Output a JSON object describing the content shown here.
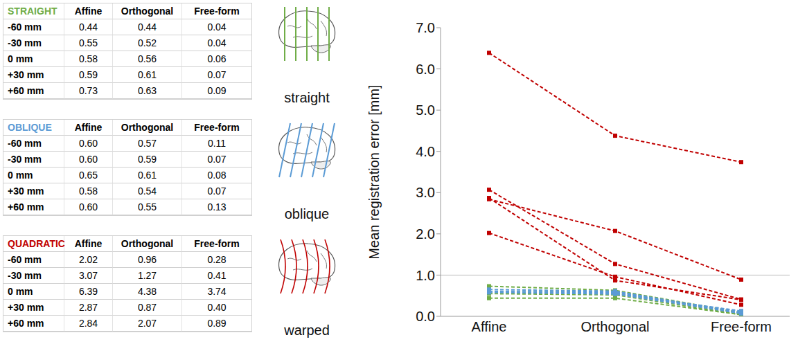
{
  "tables": [
    {
      "title": "STRAIGHT",
      "color": "#70ad47",
      "columns": [
        "Affine",
        "Orthogonal",
        "Free-form"
      ],
      "rows": [
        [
          "-60 mm",
          "0.44",
          "0.44",
          "0.04"
        ],
        [
          "-30 mm",
          "0.55",
          "0.52",
          "0.04"
        ],
        [
          "0 mm",
          "0.58",
          "0.56",
          "0.06"
        ],
        [
          "+30 mm",
          "0.59",
          "0.61",
          "0.07"
        ],
        [
          "+60 mm",
          "0.73",
          "0.63",
          "0.09"
        ]
      ]
    },
    {
      "title": "OBLIQUE",
      "color": "#5b9bd5",
      "columns": [
        "Affine",
        "Orthogonal",
        "Free-form"
      ],
      "rows": [
        [
          "-60 mm",
          "0.60",
          "0.57",
          "0.11"
        ],
        [
          "-30 mm",
          "0.60",
          "0.59",
          "0.07"
        ],
        [
          "0 mm",
          "0.65",
          "0.61",
          "0.08"
        ],
        [
          "+30 mm",
          "0.58",
          "0.54",
          "0.07"
        ],
        [
          "+60 mm",
          "0.60",
          "0.55",
          "0.13"
        ]
      ]
    },
    {
      "title": "QUADRATIC",
      "color": "#c00000",
      "columns": [
        "Affine",
        "Orthogonal",
        "Free-form"
      ],
      "rows": [
        [
          "-60 mm",
          "2.02",
          "0.96",
          "0.28"
        ],
        [
          "-30 mm",
          "3.07",
          "1.27",
          "0.41"
        ],
        [
          "0 mm",
          "6.39",
          "4.38",
          "3.74"
        ],
        [
          "+30 mm",
          "2.87",
          "0.87",
          "0.40"
        ],
        [
          "+60 mm",
          "2.84",
          "2.07",
          "0.89"
        ]
      ]
    }
  ],
  "illustrations": [
    {
      "label": "straight",
      "color": "#70ad47"
    },
    {
      "label": "oblique",
      "color": "#5b9bd5"
    },
    {
      "label": "warped",
      "color": "#c00000"
    }
  ],
  "chart_data": {
    "type": "line",
    "y_label": "Mean registration error [mm]",
    "categories": [
      "Affine",
      "Orthogonal",
      "Free-form"
    ],
    "ylim": [
      0,
      7
    ],
    "yticks": [
      {
        "value": 0,
        "label": "0.0"
      },
      {
        "value": 1,
        "label": "1.0"
      },
      {
        "value": 2,
        "label": "2.0"
      },
      {
        "value": 3,
        "label": "3.0"
      },
      {
        "value": 4,
        "label": "4.0"
      },
      {
        "value": 5,
        "label": "5.0"
      },
      {
        "value": 6,
        "label": "6.0"
      },
      {
        "value": 7,
        "label": "7.0"
      }
    ],
    "grid": false,
    "reference_lines": [
      1
    ],
    "line_style": "dashed",
    "marker": "square",
    "series": [
      {
        "color": "#70ad47",
        "values": [
          0.44,
          0.44,
          0.04
        ]
      },
      {
        "color": "#70ad47",
        "values": [
          0.55,
          0.52,
          0.04
        ]
      },
      {
        "color": "#70ad47",
        "values": [
          0.58,
          0.56,
          0.06
        ]
      },
      {
        "color": "#70ad47",
        "values": [
          0.59,
          0.61,
          0.07
        ]
      },
      {
        "color": "#70ad47",
        "values": [
          0.73,
          0.63,
          0.09
        ]
      },
      {
        "color": "#5b9bd5",
        "values": [
          0.6,
          0.57,
          0.11
        ]
      },
      {
        "color": "#5b9bd5",
        "values": [
          0.6,
          0.59,
          0.07
        ]
      },
      {
        "color": "#5b9bd5",
        "values": [
          0.65,
          0.61,
          0.08
        ]
      },
      {
        "color": "#5b9bd5",
        "values": [
          0.58,
          0.54,
          0.07
        ]
      },
      {
        "color": "#5b9bd5",
        "values": [
          0.6,
          0.55,
          0.13
        ]
      },
      {
        "color": "#c00000",
        "values": [
          2.02,
          0.96,
          0.28
        ]
      },
      {
        "color": "#c00000",
        "values": [
          3.07,
          1.27,
          0.41
        ]
      },
      {
        "color": "#c00000",
        "values": [
          6.39,
          4.38,
          3.74
        ]
      },
      {
        "color": "#c00000",
        "values": [
          2.87,
          0.87,
          0.4
        ]
      },
      {
        "color": "#c00000",
        "values": [
          2.84,
          2.07,
          0.89
        ]
      }
    ]
  }
}
